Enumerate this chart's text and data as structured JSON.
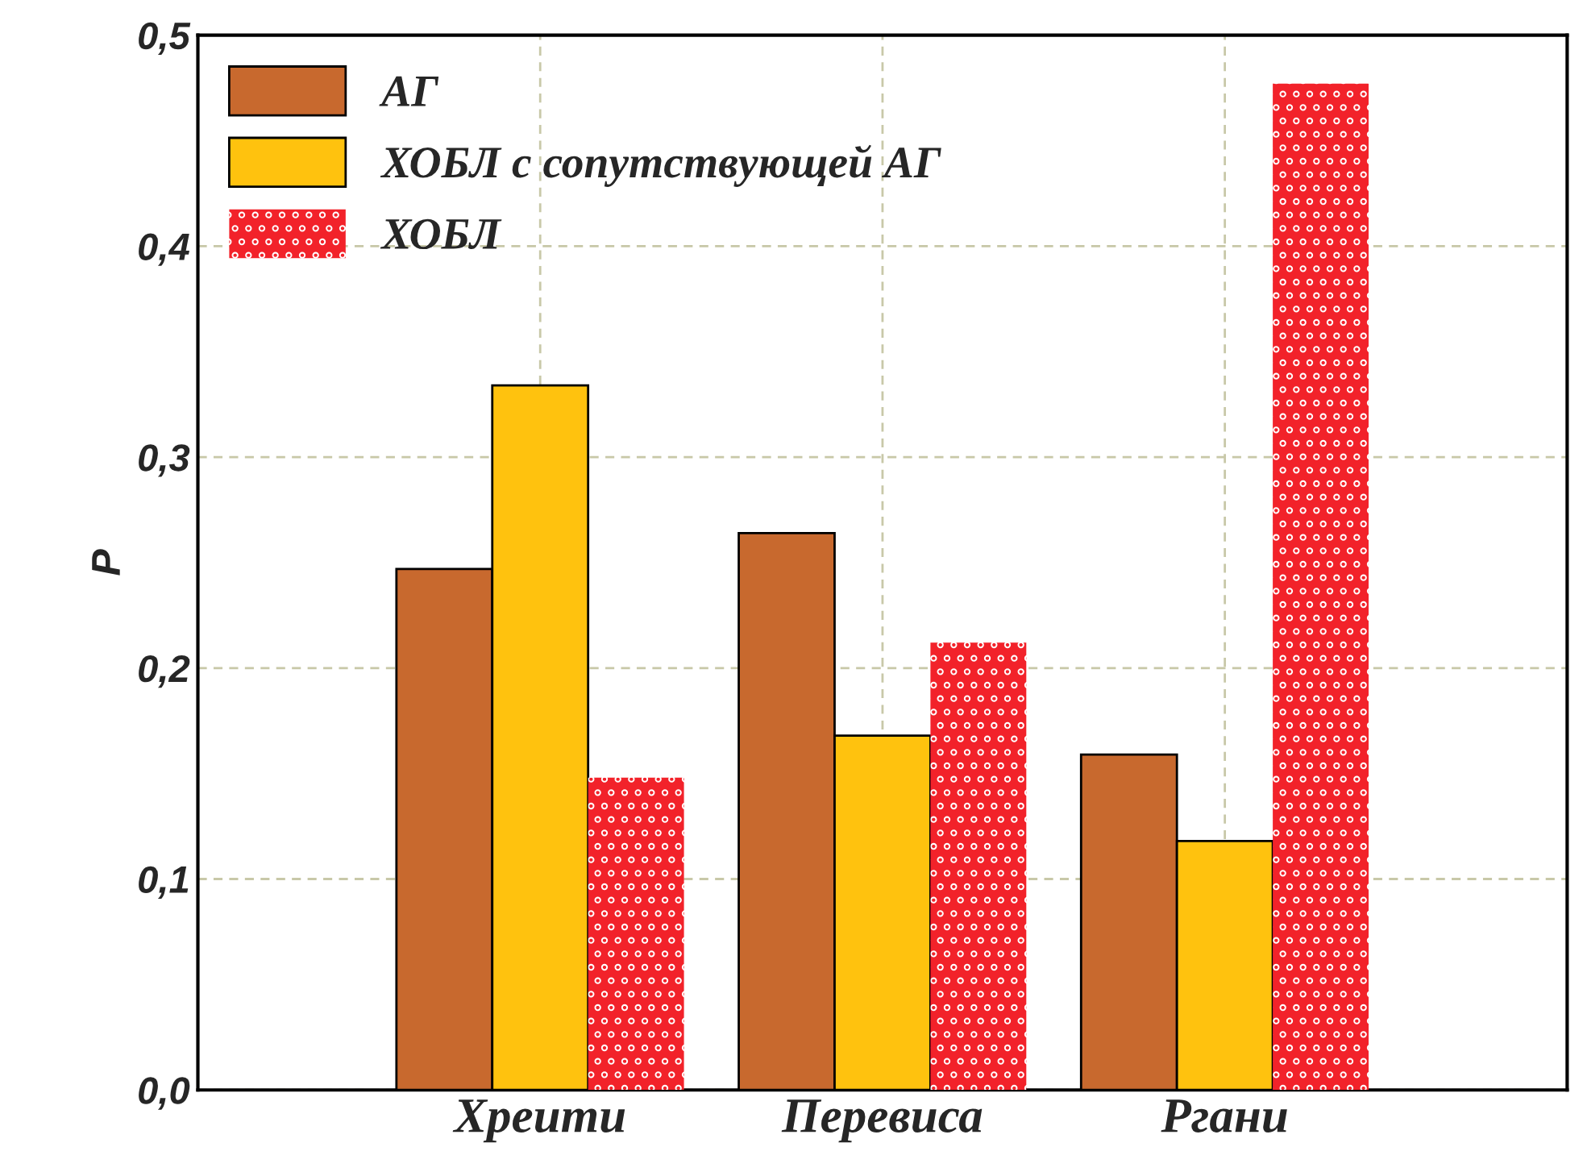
{
  "chart_data": {
    "type": "bar",
    "ylabel": "P",
    "categories": [
      "Хреити",
      "Перевиса",
      "Ргани"
    ],
    "series": [
      {
        "name": "АГ",
        "color": "#c8692e",
        "values": [
          0.247,
          0.264,
          0.159
        ]
      },
      {
        "name": "ХОБЛ с сопутствующей АГ",
        "color": "#ffc20e",
        "values": [
          0.334,
          0.168,
          0.118
        ]
      },
      {
        "name": "ХОБЛ",
        "color": "#f2222a",
        "values": [
          0.148,
          0.212,
          0.477
        ]
      }
    ],
    "ylim": [
      0,
      0.5
    ],
    "yticks": [
      {
        "value": 0,
        "label": "0,0"
      },
      {
        "value": 0.1,
        "label": "0,1"
      },
      {
        "value": 0.2,
        "label": "0,2"
      },
      {
        "value": 0.3,
        "label": "0,3"
      },
      {
        "value": 0.4,
        "label": "0,4"
      },
      {
        "value": 0.5,
        "label": "0,5"
      }
    ],
    "grid": true,
    "legend": "top left"
  }
}
